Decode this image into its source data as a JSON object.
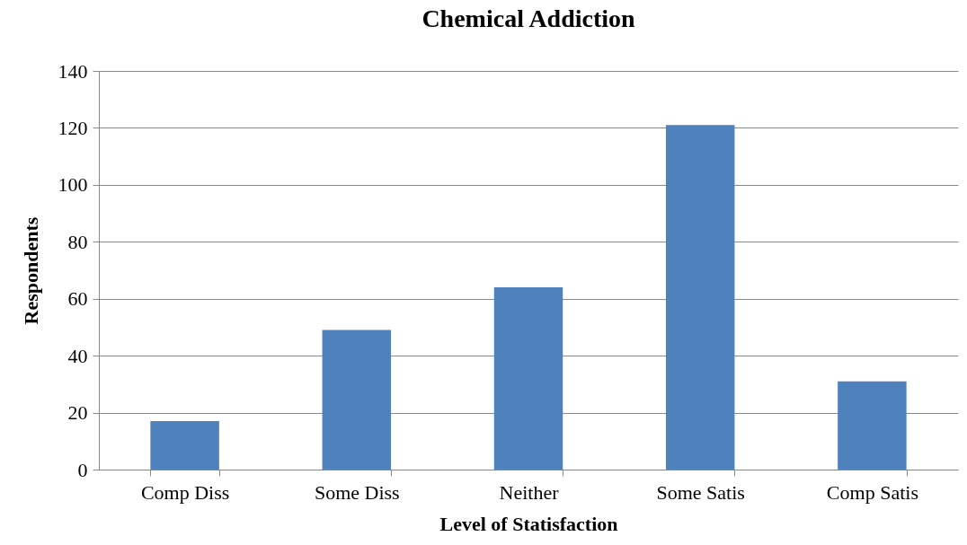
{
  "chart_data": {
    "type": "bar",
    "title": "Chemical Addiction",
    "xlabel": "Level of Statisfaction",
    "ylabel": "Respondents",
    "categories": [
      "Comp Diss",
      "Some Diss",
      "Neither",
      "Some Satis",
      "Comp Satis"
    ],
    "values": [
      17,
      49,
      64,
      121,
      31
    ],
    "color": "#4f81bd",
    "ylim": [
      0,
      140
    ],
    "yticks": [
      0,
      20,
      40,
      60,
      80,
      100,
      120,
      140
    ],
    "grid": "y"
  }
}
